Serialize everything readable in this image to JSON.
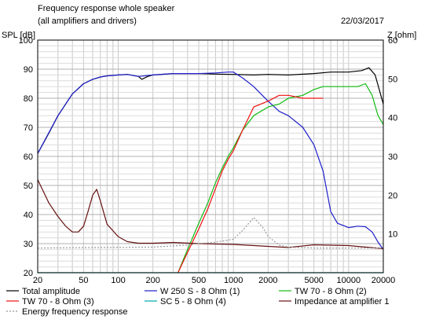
{
  "chart_data": {
    "type": "line",
    "title": "Frequency response whole speaker",
    "subtitle": "(all amplifiers and drivers)",
    "date": "22/03/2017",
    "x_scale": "log",
    "xlim": [
      20,
      20000
    ],
    "x_tick_labels": [
      "20",
      "50",
      "100",
      "200",
      "500",
      "1000",
      "2000",
      "5000",
      "10000",
      "20000"
    ],
    "x_ticks": [
      20,
      50,
      100,
      200,
      500,
      1000,
      2000,
      5000,
      10000,
      20000
    ],
    "y_left_label": "SPL [dB]",
    "ylim_left": [
      20,
      100
    ],
    "y_left_ticks": [
      20,
      30,
      40,
      50,
      60,
      70,
      80,
      90,
      100
    ],
    "y_right_label": "Z [ohm]",
    "ylim_right": [
      0,
      60
    ],
    "y_right_ticks": [
      10,
      20,
      30,
      40,
      50,
      60
    ],
    "grid": true,
    "legend_position": "bottom",
    "series": [
      {
        "name": "Total amplitude",
        "color": "#000000",
        "axis": "left",
        "style": "solid",
        "x": [
          20,
          25,
          30,
          40,
          50,
          60,
          70,
          80,
          100,
          120,
          150,
          160,
          180,
          200,
          300,
          500,
          700,
          1000,
          1500,
          2000,
          3000,
          5000,
          7000,
          10000,
          13000,
          15000,
          17000,
          20000
        ],
        "y": [
          61,
          68,
          74,
          81.5,
          85,
          86.5,
          87.3,
          87.7,
          88,
          88.2,
          87.5,
          86.5,
          87.5,
          88,
          88.5,
          88.5,
          88.3,
          88.2,
          88,
          88.2,
          88,
          88.5,
          89,
          89,
          89.5,
          90.5,
          88,
          78
        ]
      },
      {
        "name": "W 250 S - 8 Ohm  (1)",
        "color": "#1f1fcc",
        "axis": "left",
        "style": "solid",
        "x": [
          20,
          30,
          40,
          50,
          60,
          70,
          80,
          100,
          120,
          150,
          200,
          300,
          500,
          700,
          900,
          1000,
          1200,
          1500,
          2000,
          2500,
          3000,
          4000,
          5000,
          6000,
          7000,
          8000,
          10000,
          12000,
          14000,
          16000,
          18000,
          20000
        ],
        "y": [
          61,
          74,
          81.5,
          85,
          86.5,
          87.3,
          87.7,
          88,
          88.2,
          87.5,
          88,
          88.5,
          88.5,
          88.7,
          89,
          89,
          87,
          84,
          79,
          75.5,
          74,
          70,
          64,
          55,
          41,
          37,
          35.5,
          36,
          35.8,
          34,
          30.5,
          28
        ]
      },
      {
        "name": "TW 70 - 8 Ohm (2)",
        "color": "#11bb11",
        "axis": "left",
        "style": "solid",
        "x": [
          330,
          400,
          500,
          600,
          700,
          800,
          900,
          1000,
          1200,
          1500,
          2000,
          2500,
          3000,
          4000,
          5000,
          6000,
          8000,
          10000,
          12000,
          14000,
          16000,
          18000,
          20000
        ],
        "y": [
          20,
          28,
          37,
          44,
          51,
          56,
          60,
          63,
          69,
          74,
          77,
          78,
          80,
          81,
          83,
          84,
          84,
          84,
          84,
          85,
          81,
          74,
          71
        ]
      },
      {
        "name": "TW 70 - 8 Ohm (3)",
        "color": "#ee1111",
        "axis": "left",
        "style": "solid",
        "x": [
          330,
          400,
          500,
          600,
          700,
          800,
          900,
          1000,
          1200,
          1500,
          2000,
          2500,
          3000,
          4000,
          5000,
          6000
        ],
        "y": [
          20,
          27,
          35,
          42,
          49,
          55,
          59,
          62,
          69,
          77,
          79,
          81,
          81,
          80,
          80,
          80
        ]
      },
      {
        "name": "SC 5 - 8 Ohm (4)",
        "color": "#00aaaa",
        "axis": "left",
        "style": "solid",
        "x": [
          20,
          20000
        ],
        "y": [
          20,
          20
        ]
      },
      {
        "name": "Impedance at amplifier 1",
        "color": "#661111",
        "axis": "right",
        "style": "solid",
        "x": [
          20,
          25,
          30,
          35,
          40,
          45,
          50,
          55,
          60,
          65,
          70,
          80,
          100,
          120,
          150,
          200,
          300,
          500,
          1000,
          2000,
          3000,
          5000,
          10000,
          20000
        ],
        "y": [
          24,
          18,
          14.5,
          12,
          10.5,
          10.5,
          12,
          16,
          20,
          21.5,
          18.5,
          12.5,
          9.3,
          8,
          7.6,
          7.6,
          7.8,
          7.5,
          7.3,
          6.8,
          6.5,
          7.2,
          7,
          6.2
        ]
      },
      {
        "name": "Energy frequency response",
        "color": "#999999",
        "axis": "left",
        "style": "dotted",
        "x": [
          20,
          200,
          400,
          500,
          700,
          1000,
          1200,
          1500,
          1800,
          2000,
          2500,
          3000,
          5000,
          10000,
          20000
        ],
        "y": [
          28.5,
          28.8,
          29.5,
          30,
          30.5,
          31.5,
          34.5,
          39,
          35.5,
          32.5,
          29.5,
          28.8,
          28.5,
          28.5,
          28.5
        ]
      }
    ]
  }
}
